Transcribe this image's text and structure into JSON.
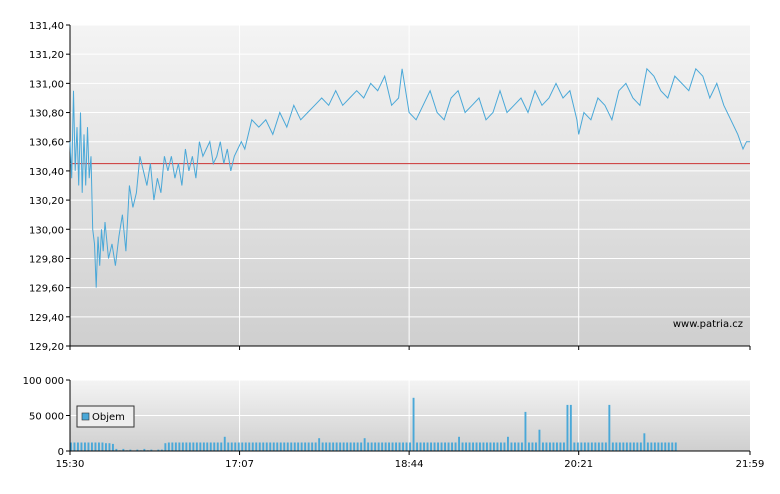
{
  "watermark": "www.patria.cz",
  "colors": {
    "line": "#4aa8d8",
    "reference": "#cc3333",
    "bar": "#4aa8d8",
    "plot_top": "#f4f4f4",
    "plot_bottom": "#cfcfcf",
    "grid": "#ffffff"
  },
  "chart_data": [
    {
      "type": "line",
      "title": "",
      "xlabel": "",
      "ylabel": "",
      "ylim": [
        129.2,
        131.4
      ],
      "x_ticks": [
        "15:30",
        "17:07",
        "18:44",
        "20:21",
        "21:59"
      ],
      "y_ticks": [
        "129,20",
        "129,40",
        "129,60",
        "129,80",
        "130,00",
        "130,20",
        "130,40",
        "130,60",
        "130,80",
        "131,00",
        "131,20",
        "131,40"
      ],
      "y_tick_values": [
        129.2,
        129.4,
        129.6,
        129.8,
        130.0,
        130.2,
        130.4,
        130.6,
        130.8,
        131.0,
        131.2,
        131.4
      ],
      "reference_line": 130.45,
      "grid": true,
      "series": [
        {
          "x": [
            "15:30",
            "15:31",
            "15:32",
            "15:33",
            "15:34",
            "15:35",
            "15:36",
            "15:37",
            "15:38",
            "15:39",
            "15:40",
            "15:41",
            "15:42",
            "15:43",
            "15:44",
            "15:45",
            "15:46",
            "15:47",
            "15:48",
            "15:49",
            "15:50",
            "15:52",
            "15:54",
            "15:56",
            "15:58",
            "16:00",
            "16:02",
            "16:04",
            "16:06",
            "16:08",
            "16:10",
            "16:12",
            "16:14",
            "16:16",
            "16:18",
            "16:20",
            "16:22",
            "16:24",
            "16:26",
            "16:28",
            "16:30",
            "16:32",
            "16:34",
            "16:36",
            "16:38",
            "16:40",
            "16:42",
            "16:44",
            "16:46",
            "16:48",
            "16:50",
            "16:52",
            "16:54",
            "16:56",
            "16:58",
            "17:00",
            "17:02",
            "17:04",
            "17:06",
            "17:08",
            "17:10",
            "17:14",
            "17:18",
            "17:22",
            "17:26",
            "17:30",
            "17:34",
            "17:38",
            "17:42",
            "17:46",
            "17:50",
            "17:54",
            "17:58",
            "18:02",
            "18:06",
            "18:10",
            "18:14",
            "18:18",
            "18:22",
            "18:26",
            "18:30",
            "18:34",
            "18:38",
            "18:40",
            "18:42",
            "18:44",
            "18:48",
            "18:52",
            "18:56",
            "19:00",
            "19:04",
            "19:08",
            "19:12",
            "19:16",
            "19:20",
            "19:24",
            "19:28",
            "19:32",
            "19:36",
            "19:40",
            "19:44",
            "19:48",
            "19:52",
            "19:56",
            "20:00",
            "20:04",
            "20:08",
            "20:12",
            "20:16",
            "20:20",
            "20:21",
            "20:24",
            "20:28",
            "20:32",
            "20:36",
            "20:40",
            "20:44",
            "20:48",
            "20:52",
            "20:56",
            "21:00",
            "21:04",
            "21:08",
            "21:12",
            "21:16",
            "21:20",
            "21:24",
            "21:28",
            "21:32",
            "21:36",
            "21:40",
            "21:44",
            "21:48",
            "21:52",
            "21:55",
            "21:57",
            "21:59"
          ],
          "values": [
            130.6,
            130.35,
            130.95,
            130.4,
            130.7,
            130.3,
            130.8,
            130.25,
            130.65,
            130.3,
            130.7,
            130.35,
            130.5,
            130.0,
            129.9,
            129.6,
            129.95,
            129.75,
            130.0,
            129.85,
            130.05,
            129.8,
            129.9,
            129.75,
            129.95,
            130.1,
            129.85,
            130.3,
            130.15,
            130.25,
            130.5,
            130.4,
            130.3,
            130.45,
            130.2,
            130.35,
            130.25,
            130.5,
            130.4,
            130.5,
            130.35,
            130.45,
            130.3,
            130.55,
            130.4,
            130.5,
            130.35,
            130.6,
            130.5,
            130.55,
            130.6,
            130.45,
            130.5,
            130.6,
            130.45,
            130.55,
            130.4,
            130.5,
            130.55,
            130.6,
            130.55,
            130.75,
            130.7,
            130.75,
            130.65,
            130.8,
            130.7,
            130.85,
            130.75,
            130.8,
            130.85,
            130.9,
            130.85,
            130.95,
            130.85,
            130.9,
            130.95,
            130.9,
            131.0,
            130.95,
            131.05,
            130.85,
            130.9,
            131.1,
            130.95,
            130.8,
            130.75,
            130.85,
            130.95,
            130.8,
            130.75,
            130.9,
            130.95,
            130.8,
            130.85,
            130.9,
            130.75,
            130.8,
            130.95,
            130.8,
            130.85,
            130.9,
            130.8,
            130.95,
            130.85,
            130.9,
            131.0,
            130.9,
            130.95,
            130.75,
            130.65,
            130.8,
            130.75,
            130.9,
            130.85,
            130.75,
            130.95,
            131.0,
            130.9,
            130.85,
            131.1,
            131.05,
            130.95,
            130.9,
            131.05,
            131.0,
            130.95,
            131.1,
            131.05,
            130.9,
            131.0,
            130.85,
            130.75,
            130.65,
            130.55,
            130.6,
            130.6
          ]
        }
      ]
    },
    {
      "type": "bar",
      "title": "",
      "xlabel": "",
      "ylabel": "",
      "ylim": [
        0,
        100000
      ],
      "y_ticks": [
        "0",
        "50 000",
        "100 000"
      ],
      "y_tick_values": [
        0,
        50000,
        100000
      ],
      "legend": [
        "Objem"
      ],
      "legend_placement": "bottom-left",
      "grid": true,
      "series": [
        {
          "name": "Objem",
          "bin_minutes": 2,
          "start": "15:30",
          "values": [
            12000,
            12000,
            12000,
            12000,
            12000,
            12000,
            12000,
            12000,
            12000,
            12000,
            11000,
            11000,
            10000,
            3000,
            1000,
            3000,
            1000,
            2000,
            0,
            2000,
            1000,
            3000,
            1000,
            2000,
            0,
            2000,
            2000,
            11000,
            12000,
            12000,
            12000,
            12000,
            12000,
            12000,
            12000,
            12000,
            12000,
            12000,
            12000,
            12000,
            12000,
            12000,
            12000,
            12000,
            20000,
            12000,
            12000,
            12000,
            12000,
            12000,
            12000,
            12000,
            12000,
            12000,
            12000,
            12000,
            12000,
            12000,
            12000,
            12000,
            12000,
            12000,
            12000,
            12000,
            12000,
            12000,
            12000,
            12000,
            12000,
            12000,
            12000,
            18000,
            12000,
            12000,
            12000,
            12000,
            12000,
            12000,
            12000,
            12000,
            12000,
            12000,
            12000,
            12000,
            18000,
            12000,
            12000,
            12000,
            12000,
            12000,
            12000,
            12000,
            12000,
            12000,
            12000,
            12000,
            12000,
            12000,
            75000,
            12000,
            12000,
            12000,
            12000,
            12000,
            12000,
            12000,
            12000,
            12000,
            12000,
            12000,
            12000,
            20000,
            12000,
            12000,
            12000,
            12000,
            12000,
            12000,
            12000,
            12000,
            12000,
            12000,
            12000,
            12000,
            12000,
            20000,
            12000,
            12000,
            12000,
            12000,
            55000,
            12000,
            12000,
            12000,
            30000,
            12000,
            12000,
            12000,
            12000,
            12000,
            12000,
            12000,
            65000,
            65000,
            12000,
            12000,
            12000,
            12000,
            12000,
            12000,
            12000,
            12000,
            12000,
            12000,
            65000,
            12000,
            12000,
            12000,
            12000,
            12000,
            12000,
            12000,
            12000,
            12000,
            25000,
            12000,
            12000,
            12000,
            12000,
            12000,
            12000,
            12000,
            12000,
            12000
          ]
        }
      ]
    }
  ]
}
